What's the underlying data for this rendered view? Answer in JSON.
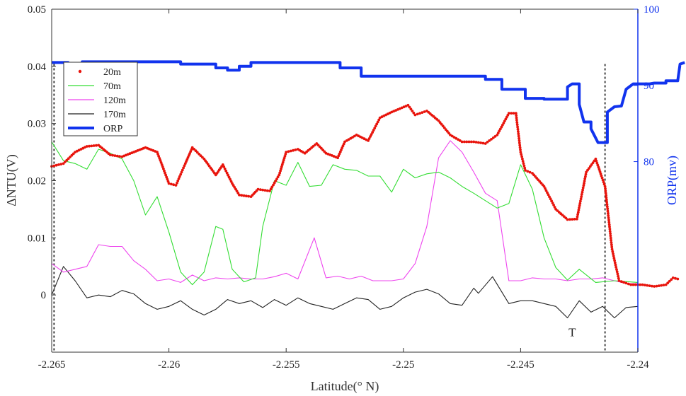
{
  "chart_data": {
    "type": "line",
    "xlabel": "Latitude(° N)",
    "ylabel_left": "ΔNTU(V)",
    "ylabel_right": "ORP(mv)",
    "xlim": [
      -2.265,
      -2.24
    ],
    "ylim_left": [
      -0.01,
      0.05
    ],
    "ylim_right": [
      55,
      100
    ],
    "x_ticks": [
      -2.265,
      -2.26,
      -2.255,
      -2.25,
      -2.245,
      -2.24
    ],
    "x_tick_labels": [
      "-2.265",
      "-2.26",
      "-2.255",
      "-2.25",
      "-2.245",
      "-2.24"
    ],
    "y_left_ticks": [
      0,
      0.01,
      0.02,
      0.03,
      0.04,
      0.05
    ],
    "y_left_tick_labels": [
      "0",
      "0.01",
      "0.02",
      "0.03",
      "0.04",
      "0.05"
    ],
    "y_right_ticks": [
      80,
      90,
      100
    ],
    "y_right_tick_labels": [
      "80",
      "90",
      "100"
    ],
    "colors": {
      "s20": "#e8140c",
      "s70": "#33dd33",
      "s120": "#ee44ee",
      "s170": "#222222",
      "orp": "#1133ee"
    },
    "annotation": {
      "text": "T",
      "x": -2.2428,
      "y": -0.0072
    },
    "vlines": [
      -2.2649,
      -2.2414
    ],
    "series": [
      {
        "name": "20m",
        "axis": "left",
        "style": "dots",
        "points": [
          [
            -2.265,
            0.0225
          ],
          [
            -2.2645,
            0.023
          ],
          [
            -2.264,
            0.025
          ],
          [
            -2.2635,
            0.026
          ],
          [
            -2.263,
            0.0262
          ],
          [
            -2.2625,
            0.0245
          ],
          [
            -2.262,
            0.0242
          ],
          [
            -2.2615,
            0.025
          ],
          [
            -2.261,
            0.0258
          ],
          [
            -2.2605,
            0.025
          ],
          [
            -2.26,
            0.0195
          ],
          [
            -2.2597,
            0.0192
          ],
          [
            -2.2593,
            0.023
          ],
          [
            -2.259,
            0.0258
          ],
          [
            -2.2585,
            0.0238
          ],
          [
            -2.258,
            0.021
          ],
          [
            -2.2577,
            0.0228
          ],
          [
            -2.2573,
            0.0195
          ],
          [
            -2.257,
            0.0175
          ],
          [
            -2.2565,
            0.0172
          ],
          [
            -2.2562,
            0.0185
          ],
          [
            -2.2557,
            0.0182
          ],
          [
            -2.2553,
            0.021
          ],
          [
            -2.255,
            0.025
          ],
          [
            -2.2545,
            0.0255
          ],
          [
            -2.2542,
            0.0248
          ],
          [
            -2.2537,
            0.0265
          ],
          [
            -2.2533,
            0.0248
          ],
          [
            -2.2528,
            0.024
          ],
          [
            -2.2525,
            0.0268
          ],
          [
            -2.252,
            0.028
          ],
          [
            -2.2515,
            0.027
          ],
          [
            -2.251,
            0.031
          ],
          [
            -2.2505,
            0.032
          ],
          [
            -2.2498,
            0.0332
          ],
          [
            -2.2495,
            0.0315
          ],
          [
            -2.249,
            0.0322
          ],
          [
            -2.2485,
            0.0305
          ],
          [
            -2.248,
            0.028
          ],
          [
            -2.2475,
            0.0268
          ],
          [
            -2.247,
            0.0268
          ],
          [
            -2.2465,
            0.0265
          ],
          [
            -2.246,
            0.028
          ],
          [
            -2.2455,
            0.0318
          ],
          [
            -2.2452,
            0.0318
          ],
          [
            -2.245,
            0.025
          ],
          [
            -2.2448,
            0.0218
          ],
          [
            -2.2445,
            0.0213
          ],
          [
            -2.244,
            0.019
          ],
          [
            -2.2435,
            0.015
          ],
          [
            -2.243,
            0.0132
          ],
          [
            -2.2426,
            0.0133
          ],
          [
            -2.2422,
            0.0215
          ],
          [
            -2.2418,
            0.0238
          ],
          [
            -2.2414,
            0.019
          ],
          [
            -2.2411,
            0.008
          ],
          [
            -2.2408,
            0.0025
          ],
          [
            -2.2403,
            0.0018
          ],
          [
            -2.2398,
            0.0018
          ],
          [
            -2.2393,
            0.0015
          ],
          [
            -2.2388,
            0.0018
          ],
          [
            -2.2385,
            0.003
          ],
          [
            -2.2382,
            0.0027
          ]
        ]
      },
      {
        "name": "70m",
        "axis": "left",
        "style": "line",
        "points": [
          [
            -2.265,
            0.0268
          ],
          [
            -2.2645,
            0.0235
          ],
          [
            -2.264,
            0.023
          ],
          [
            -2.2635,
            0.022
          ],
          [
            -2.263,
            0.0255
          ],
          [
            -2.2625,
            0.0248
          ],
          [
            -2.262,
            0.0238
          ],
          [
            -2.2615,
            0.02
          ],
          [
            -2.261,
            0.014
          ],
          [
            -2.2605,
            0.0172
          ],
          [
            -2.26,
            0.011
          ],
          [
            -2.2595,
            0.004
          ],
          [
            -2.259,
            0.0018
          ],
          [
            -2.2585,
            0.004
          ],
          [
            -2.258,
            0.012
          ],
          [
            -2.2577,
            0.0115
          ],
          [
            -2.2573,
            0.0045
          ],
          [
            -2.2568,
            0.0023
          ],
          [
            -2.2563,
            0.003
          ],
          [
            -2.256,
            0.012
          ],
          [
            -2.2555,
            0.02
          ],
          [
            -2.255,
            0.0192
          ],
          [
            -2.2545,
            0.0232
          ],
          [
            -2.254,
            0.019
          ],
          [
            -2.2535,
            0.0192
          ],
          [
            -2.253,
            0.0228
          ],
          [
            -2.2525,
            0.022
          ],
          [
            -2.252,
            0.0218
          ],
          [
            -2.2515,
            0.0208
          ],
          [
            -2.251,
            0.0208
          ],
          [
            -2.2505,
            0.018
          ],
          [
            -2.25,
            0.022
          ],
          [
            -2.2495,
            0.0205
          ],
          [
            -2.249,
            0.0212
          ],
          [
            -2.2485,
            0.0215
          ],
          [
            -2.248,
            0.0205
          ],
          [
            -2.2475,
            0.019
          ],
          [
            -2.247,
            0.0178
          ],
          [
            -2.2465,
            0.0165
          ],
          [
            -2.246,
            0.0152
          ],
          [
            -2.2455,
            0.016
          ],
          [
            -2.245,
            0.0228
          ],
          [
            -2.2445,
            0.0185
          ],
          [
            -2.244,
            0.01
          ],
          [
            -2.2435,
            0.0048
          ],
          [
            -2.243,
            0.0026
          ],
          [
            -2.2425,
            0.0045
          ],
          [
            -2.2418,
            0.0022
          ],
          [
            -2.241,
            0.0025
          ],
          [
            -2.24,
            0.0022
          ]
        ]
      },
      {
        "name": "120m",
        "axis": "left",
        "style": "line",
        "points": [
          [
            -2.265,
            0.0055
          ],
          [
            -2.2645,
            0.004
          ],
          [
            -2.264,
            0.0045
          ],
          [
            -2.2635,
            0.005
          ],
          [
            -2.263,
            0.0088
          ],
          [
            -2.2625,
            0.0085
          ],
          [
            -2.262,
            0.0085
          ],
          [
            -2.2615,
            0.006
          ],
          [
            -2.261,
            0.0045
          ],
          [
            -2.2605,
            0.0025
          ],
          [
            -2.26,
            0.0028
          ],
          [
            -2.2595,
            0.0022
          ],
          [
            -2.259,
            0.0035
          ],
          [
            -2.2585,
            0.0025
          ],
          [
            -2.258,
            0.003
          ],
          [
            -2.2575,
            0.0028
          ],
          [
            -2.257,
            0.003
          ],
          [
            -2.2565,
            0.0028
          ],
          [
            -2.256,
            0.0028
          ],
          [
            -2.2555,
            0.0032
          ],
          [
            -2.255,
            0.0038
          ],
          [
            -2.2545,
            0.0028
          ],
          [
            -2.2538,
            0.01
          ],
          [
            -2.2533,
            0.003
          ],
          [
            -2.2528,
            0.0033
          ],
          [
            -2.2523,
            0.0028
          ],
          [
            -2.2518,
            0.0033
          ],
          [
            -2.2513,
            0.0025
          ],
          [
            -2.2505,
            0.0025
          ],
          [
            -2.25,
            0.0028
          ],
          [
            -2.2495,
            0.0055
          ],
          [
            -2.249,
            0.012
          ],
          [
            -2.2485,
            0.024
          ],
          [
            -2.248,
            0.027
          ],
          [
            -2.2475,
            0.025
          ],
          [
            -2.247,
            0.0215
          ],
          [
            -2.2465,
            0.0178
          ],
          [
            -2.246,
            0.0165
          ],
          [
            -2.2455,
            0.0025
          ],
          [
            -2.245,
            0.0025
          ],
          [
            -2.2445,
            0.003
          ],
          [
            -2.244,
            0.0028
          ],
          [
            -2.2435,
            0.0028
          ],
          [
            -2.243,
            0.0025
          ],
          [
            -2.2425,
            0.0028
          ],
          [
            -2.242,
            0.0028
          ],
          [
            -2.2415,
            0.003
          ],
          [
            -2.241,
            0.0025
          ],
          [
            -2.2405,
            0.002
          ],
          [
            -2.24,
            0.002
          ]
        ]
      },
      {
        "name": "170m",
        "axis": "left",
        "style": "line",
        "points": [
          [
            -2.265,
            0.0
          ],
          [
            -2.2645,
            0.005
          ],
          [
            -2.264,
            0.0025
          ],
          [
            -2.2635,
            -0.0005
          ],
          [
            -2.263,
            0.0
          ],
          [
            -2.2625,
            -0.0003
          ],
          [
            -2.262,
            0.0008
          ],
          [
            -2.2615,
            0.0002
          ],
          [
            -2.261,
            -0.0015
          ],
          [
            -2.2605,
            -0.0025
          ],
          [
            -2.26,
            -0.002
          ],
          [
            -2.2595,
            -0.001
          ],
          [
            -2.259,
            -0.0025
          ],
          [
            -2.2585,
            -0.0035
          ],
          [
            -2.258,
            -0.0025
          ],
          [
            -2.2575,
            -0.0008
          ],
          [
            -2.257,
            -0.0015
          ],
          [
            -2.2565,
            -0.001
          ],
          [
            -2.256,
            -0.0022
          ],
          [
            -2.2555,
            -0.0008
          ],
          [
            -2.255,
            -0.0018
          ],
          [
            -2.2545,
            -0.0005
          ],
          [
            -2.254,
            -0.0015
          ],
          [
            -2.2535,
            -0.002
          ],
          [
            -2.253,
            -0.0025
          ],
          [
            -2.2525,
            -0.0015
          ],
          [
            -2.252,
            -0.0005
          ],
          [
            -2.2515,
            -0.0008
          ],
          [
            -2.251,
            -0.0025
          ],
          [
            -2.2505,
            -0.002
          ],
          [
            -2.25,
            -0.0005
          ],
          [
            -2.2495,
            0.0005
          ],
          [
            -2.249,
            0.001
          ],
          [
            -2.2485,
            0.0002
          ],
          [
            -2.248,
            -0.0015
          ],
          [
            -2.2475,
            -0.0018
          ],
          [
            -2.247,
            0.0012
          ],
          [
            -2.2468,
            0.0003
          ],
          [
            -2.2462,
            0.0032
          ],
          [
            -2.2455,
            -0.0015
          ],
          [
            -2.245,
            -0.001
          ],
          [
            -2.2445,
            -0.001
          ],
          [
            -2.244,
            -0.0015
          ],
          [
            -2.2435,
            -0.002
          ],
          [
            -2.243,
            -0.004
          ],
          [
            -2.2425,
            -0.001
          ],
          [
            -2.242,
            -0.003
          ],
          [
            -2.2415,
            -0.002
          ],
          [
            -2.241,
            -0.004
          ],
          [
            -2.2405,
            -0.0022
          ],
          [
            -2.24,
            -0.002
          ]
        ]
      },
      {
        "name": "ORP",
        "axis": "right",
        "style": "thick-step",
        "points": [
          [
            -2.265,
            93
          ],
          [
            -2.2643,
            93
          ],
          [
            -2.2643,
            92.6
          ],
          [
            -2.2637,
            92.6
          ],
          [
            -2.2637,
            93.1
          ],
          [
            -2.2595,
            93.1
          ],
          [
            -2.2595,
            92.8
          ],
          [
            -2.258,
            92.8
          ],
          [
            -2.258,
            92.3
          ],
          [
            -2.2575,
            92.3
          ],
          [
            -2.2575,
            92
          ],
          [
            -2.257,
            92
          ],
          [
            -2.257,
            92.5
          ],
          [
            -2.2565,
            92.5
          ],
          [
            -2.2565,
            93
          ],
          [
            -2.2527,
            93
          ],
          [
            -2.2527,
            92.3
          ],
          [
            -2.2518,
            92.3
          ],
          [
            -2.2518,
            91.2
          ],
          [
            -2.2465,
            91.2
          ],
          [
            -2.2465,
            90.8
          ],
          [
            -2.2458,
            90.8
          ],
          [
            -2.2458,
            89.5
          ],
          [
            -2.2448,
            89.5
          ],
          [
            -2.2448,
            88.3
          ],
          [
            -2.244,
            88.3
          ],
          [
            -2.244,
            88.2
          ],
          [
            -2.243,
            88.2
          ],
          [
            -2.243,
            89.8
          ],
          [
            -2.2428,
            90.2
          ],
          [
            -2.2425,
            90.2
          ],
          [
            -2.2425,
            87.5
          ],
          [
            -2.2423,
            85.2
          ],
          [
            -2.242,
            85.2
          ],
          [
            -2.242,
            84.3
          ],
          [
            -2.2417,
            82.5
          ],
          [
            -2.2413,
            82.5
          ],
          [
            -2.2413,
            86.5
          ],
          [
            -2.241,
            87.2
          ],
          [
            -2.2407,
            87.3
          ],
          [
            -2.2405,
            89.5
          ],
          [
            -2.2402,
            90.2
          ],
          [
            -2.2395,
            90.2
          ],
          [
            -2.2393,
            90.3
          ],
          [
            -2.2388,
            90.3
          ],
          [
            -2.2388,
            90.6
          ],
          [
            -2.2383,
            90.6
          ],
          [
            -2.2382,
            92.8
          ],
          [
            -2.238,
            93
          ]
        ]
      }
    ]
  }
}
